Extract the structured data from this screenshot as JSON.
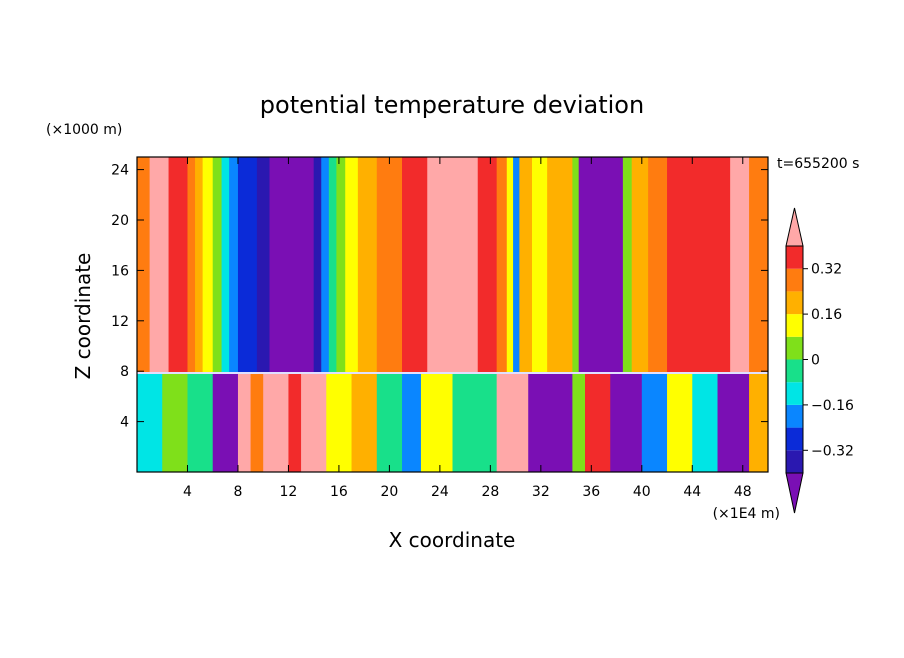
{
  "chart_data": {
    "type": "heatmap",
    "title": "potential temperature deviation",
    "xlabel": "X coordinate",
    "ylabel": "Z coordinate",
    "x_unit": "(×1E4 m)",
    "y_unit": "(×1000 m)",
    "time_label": "t=655200 s",
    "xlim": [
      0,
      50
    ],
    "ylim": [
      0,
      25
    ],
    "x_ticks": [
      4,
      8,
      12,
      16,
      20,
      24,
      28,
      32,
      36,
      40,
      44,
      48
    ],
    "y_ticks": [
      4,
      8,
      12,
      16,
      20,
      24
    ],
    "colorbar": {
      "levels": [
        -0.4,
        -0.32,
        -0.24,
        -0.16,
        -0.08,
        0,
        0.08,
        0.16,
        0.24,
        0.32,
        0.4
      ],
      "labels": [
        "0.32",
        "0.16",
        "0",
        "−0.16",
        "−0.32"
      ],
      "label_values": [
        0.32,
        0.16,
        0,
        -0.16,
        -0.32
      ],
      "colors": [
        "#7a0fb4",
        "#2a18b0",
        "#0b2bd8",
        "#0a86ff",
        "#00e5e5",
        "#18e08a",
        "#7fe01a",
        "#ffff00",
        "#ffb000",
        "#ff7c10",
        "#f22b2b",
        "#ffa8a8"
      ]
    },
    "upper_layer_columns": [
      {
        "x": [
          0,
          1
        ],
        "v": 0.3
      },
      {
        "x": [
          1,
          2.5
        ],
        "v": 0.45
      },
      {
        "x": [
          2.5,
          4
        ],
        "v": 0.35
      },
      {
        "x": [
          4,
          4.6
        ],
        "v": 0.28
      },
      {
        "x": [
          4.6,
          5.2
        ],
        "v": 0.2
      },
      {
        "x": [
          5.2,
          6
        ],
        "v": 0.12
      },
      {
        "x": [
          6,
          6.7
        ],
        "v": 0.02
      },
      {
        "x": [
          6.7,
          7.3
        ],
        "v": -0.1
      },
      {
        "x": [
          7.3,
          8
        ],
        "v": -0.22
      },
      {
        "x": [
          8,
          9.5
        ],
        "v": -0.3
      },
      {
        "x": [
          9.5,
          10.5
        ],
        "v": -0.36
      },
      {
        "x": [
          10.5,
          14
        ],
        "v": -0.5
      },
      {
        "x": [
          14,
          14.6
        ],
        "v": -0.36
      },
      {
        "x": [
          14.6,
          15.2
        ],
        "v": -0.22
      },
      {
        "x": [
          15.2,
          15.8
        ],
        "v": -0.08
      },
      {
        "x": [
          15.8,
          16.5
        ],
        "v": 0.04
      },
      {
        "x": [
          16.5,
          17.5
        ],
        "v": 0.12
      },
      {
        "x": [
          17.5,
          19
        ],
        "v": 0.2
      },
      {
        "x": [
          19,
          21
        ],
        "v": 0.28
      },
      {
        "x": [
          21,
          23
        ],
        "v": 0.36
      },
      {
        "x": [
          23,
          27
        ],
        "v": 0.45
      },
      {
        "x": [
          27,
          28.5
        ],
        "v": 0.36
      },
      {
        "x": [
          28.5,
          29.3
        ],
        "v": 0.28
      },
      {
        "x": [
          29.3,
          29.8
        ],
        "v": 0.1
      },
      {
        "x": [
          29.8,
          30.3
        ],
        "v": -0.2
      },
      {
        "x": [
          30.3,
          31.3
        ],
        "v": 0.2
      },
      {
        "x": [
          31.3,
          32.5
        ],
        "v": 0.12
      },
      {
        "x": [
          32.5,
          34.5
        ],
        "v": 0.18
      },
      {
        "x": [
          34.5,
          35
        ],
        "v": 0.04
      },
      {
        "x": [
          35,
          38.5
        ],
        "v": -0.5
      },
      {
        "x": [
          38.5,
          39.2
        ],
        "v": 0.05
      },
      {
        "x": [
          39.2,
          40.5
        ],
        "v": 0.18
      },
      {
        "x": [
          40.5,
          42
        ],
        "v": 0.26
      },
      {
        "x": [
          42,
          44
        ],
        "v": 0.32
      },
      {
        "x": [
          44,
          47
        ],
        "v": 0.34
      },
      {
        "x": [
          47,
          48.5
        ],
        "v": 0.45
      },
      {
        "x": [
          48.5,
          50
        ],
        "v": 0.3
      }
    ],
    "lower_layer_columns": [
      {
        "x": [
          0,
          2
        ],
        "v": -0.12
      },
      {
        "x": [
          2,
          4
        ],
        "v": 0.05
      },
      {
        "x": [
          4,
          6
        ],
        "v": -0.06
      },
      {
        "x": [
          6,
          8
        ],
        "v": -0.45
      },
      {
        "x": [
          8,
          9
        ],
        "v": 0.45
      },
      {
        "x": [
          9,
          10
        ],
        "v": 0.3
      },
      {
        "x": [
          10,
          12
        ],
        "v": 0.45
      },
      {
        "x": [
          12,
          13
        ],
        "v": 0.38
      },
      {
        "x": [
          13,
          15
        ],
        "v": 0.45
      },
      {
        "x": [
          15,
          17
        ],
        "v": 0.1
      },
      {
        "x": [
          17,
          19
        ],
        "v": 0.2
      },
      {
        "x": [
          19,
          21
        ],
        "v": -0.08
      },
      {
        "x": [
          21,
          22.5
        ],
        "v": -0.2
      },
      {
        "x": [
          22.5,
          25
        ],
        "v": 0.1
      },
      {
        "x": [
          25,
          28.5
        ],
        "v": -0.05
      },
      {
        "x": [
          28.5,
          31
        ],
        "v": 0.45
      },
      {
        "x": [
          31,
          34.5
        ],
        "v": -0.5
      },
      {
        "x": [
          34.5,
          35.5
        ],
        "v": 0.0
      },
      {
        "x": [
          35.5,
          37.5
        ],
        "v": 0.35
      },
      {
        "x": [
          37.5,
          40
        ],
        "v": -0.5
      },
      {
        "x": [
          40,
          42
        ],
        "v": -0.2
      },
      {
        "x": [
          42,
          44
        ],
        "v": 0.1
      },
      {
        "x": [
          44,
          46
        ],
        "v": -0.12
      },
      {
        "x": [
          46,
          48.5
        ],
        "v": -0.5
      },
      {
        "x": [
          48.5,
          50
        ],
        "v": 0.2
      }
    ]
  }
}
